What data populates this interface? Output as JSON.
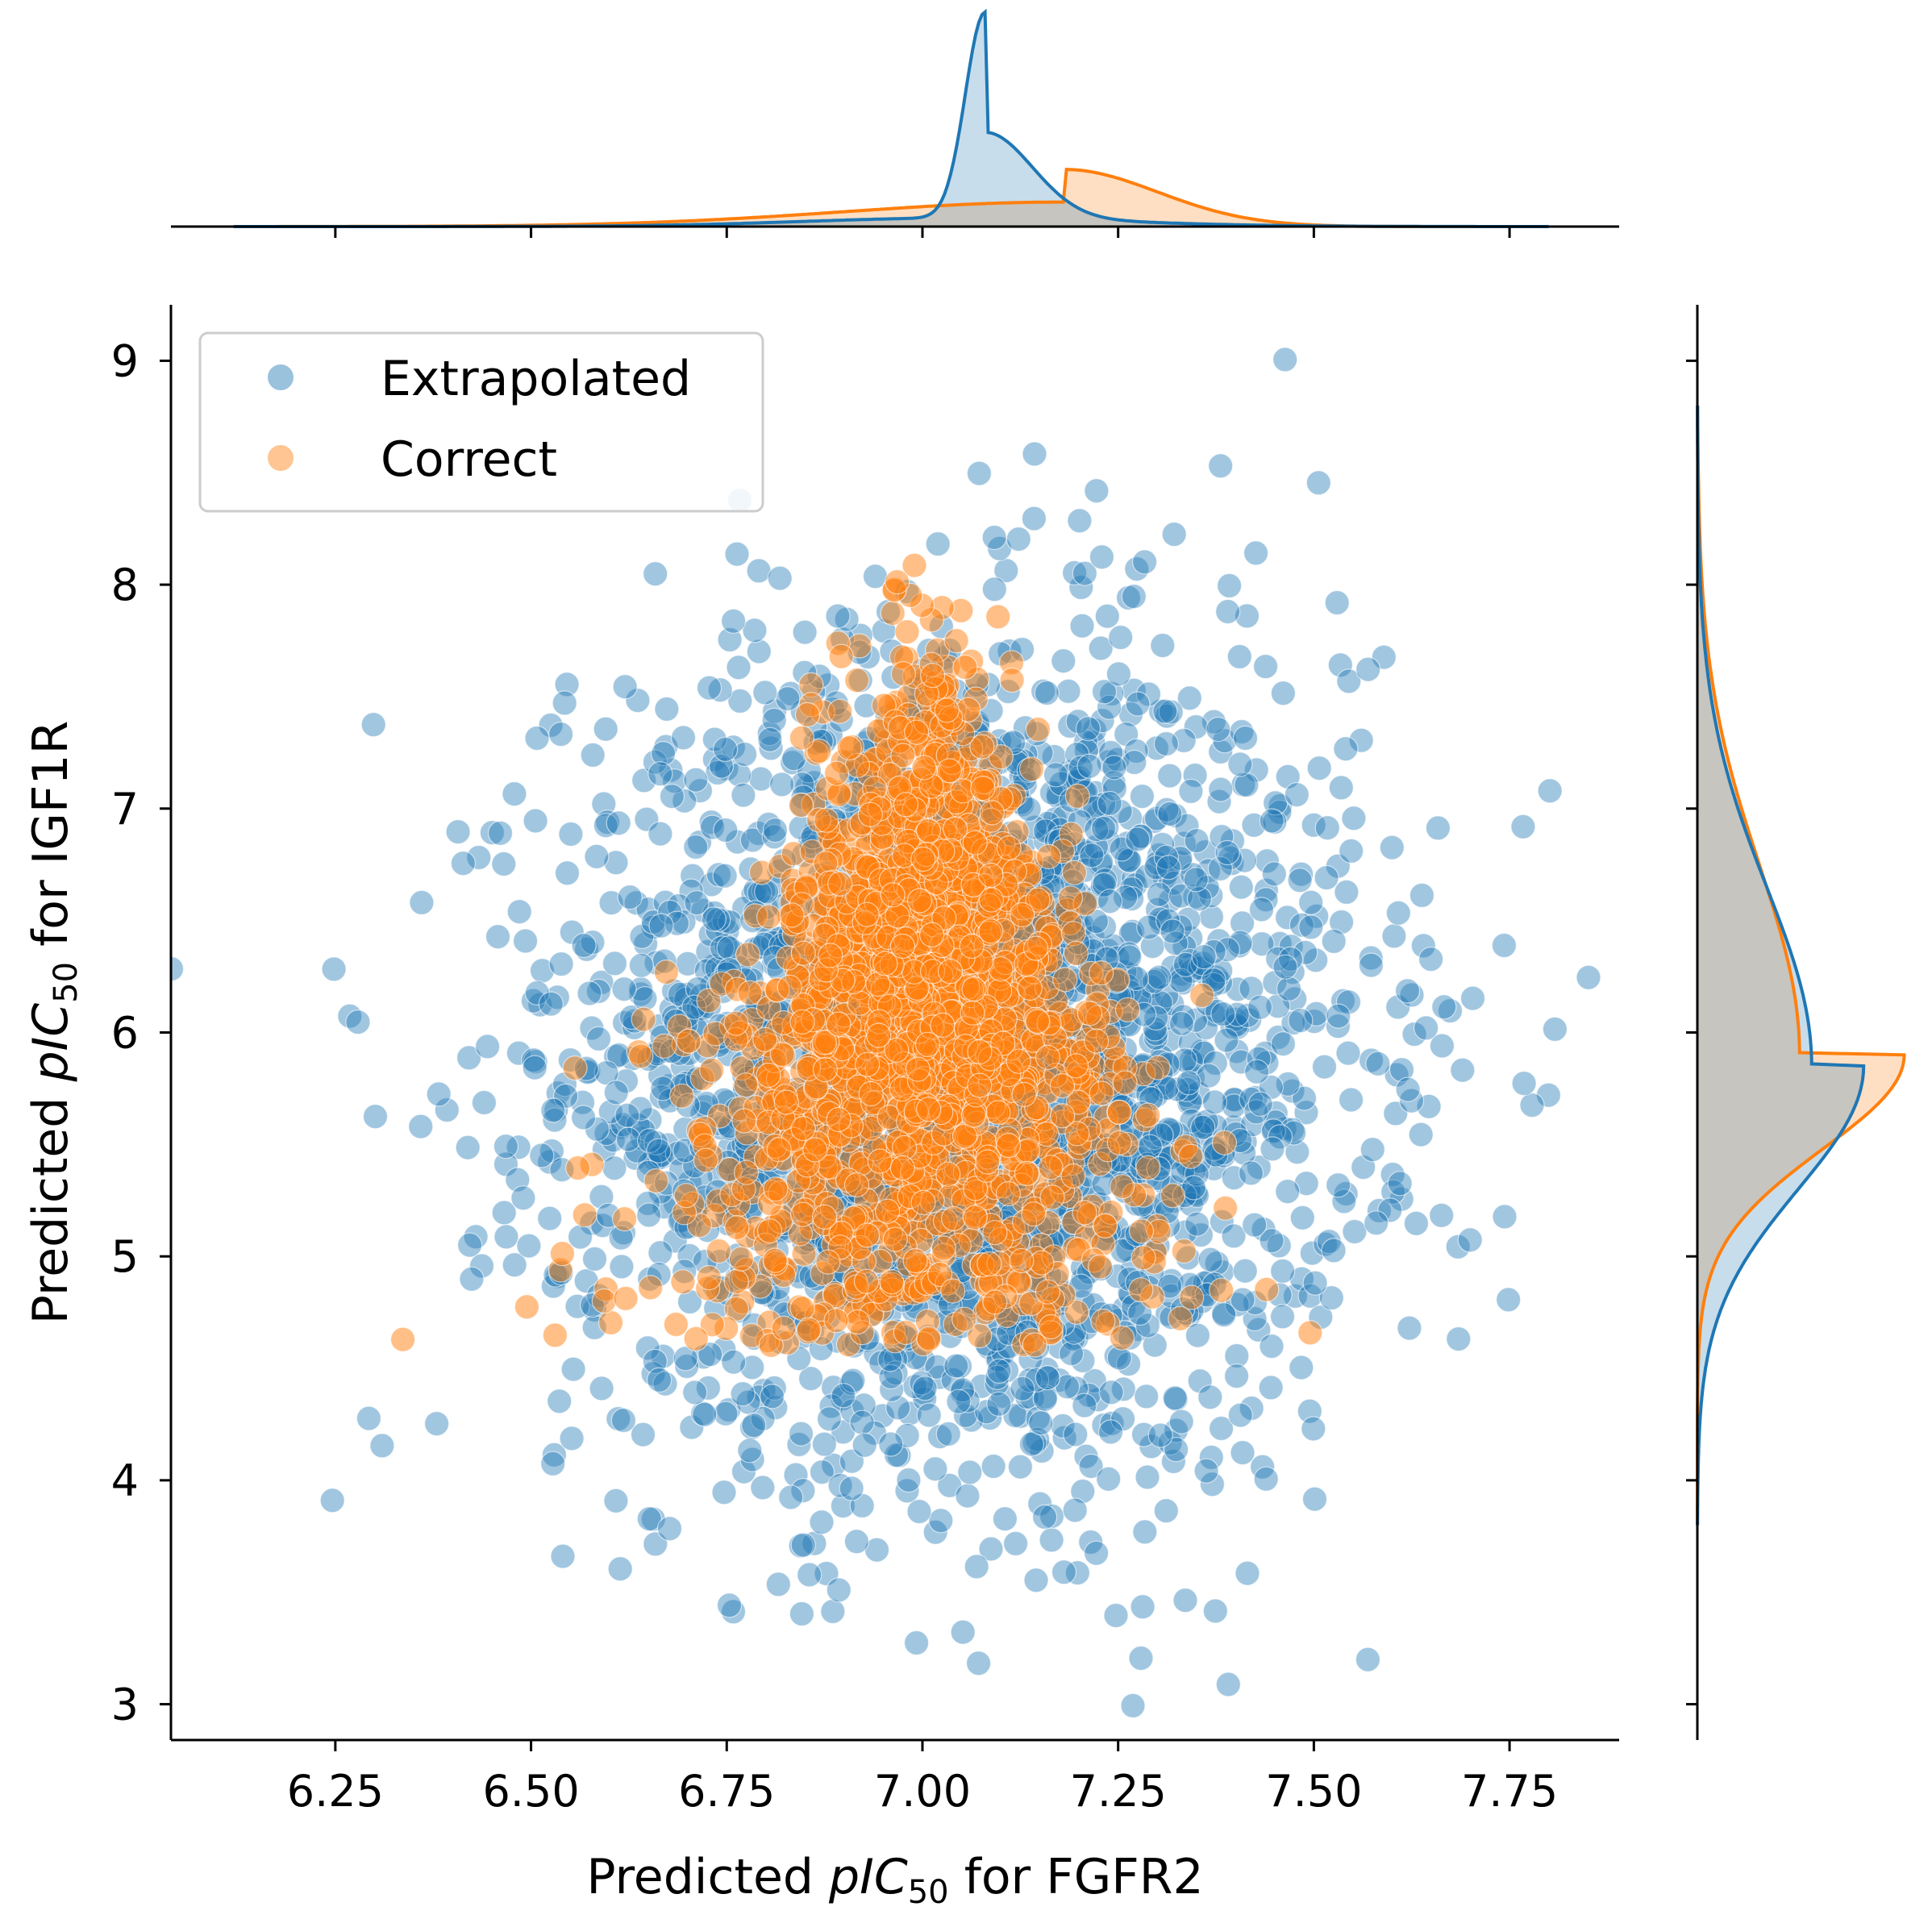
{
  "chart_data": {
    "type": "scatter",
    "subtype": "jointplot",
    "xlabel": {
      "prefix": "Predicted ",
      "italic": "pIC",
      "sub": "50",
      "suffix": " for FGFR2"
    },
    "ylabel": {
      "prefix": "Predicted ",
      "italic": "pIC",
      "sub": "50",
      "suffix": " for IGF1R"
    },
    "xlim": [
      6.04,
      7.89
    ],
    "ylim": [
      2.84,
      9.25
    ],
    "xticks": [
      6.25,
      6.5,
      6.75,
      7.0,
      7.25,
      7.5,
      7.75
    ],
    "xtick_labels": [
      "6.25",
      "6.50",
      "6.75",
      "7.00",
      "7.25",
      "7.50",
      "7.75"
    ],
    "yticks": [
      3,
      4,
      5,
      6,
      7,
      8,
      9
    ],
    "ytick_labels": [
      "3",
      "4",
      "5",
      "6",
      "7",
      "8",
      "9"
    ],
    "legend_position": "top-left",
    "series": [
      {
        "name": "Extrapolated",
        "color": "#1f77b4",
        "x_mean": 7.05,
        "x_sd": 0.25,
        "y_mean": 5.85,
        "y_sd": 0.92,
        "n_points_approx": 6000,
        "x_kde_peak": 7.08,
        "y_kde_peak": 5.85
      },
      {
        "name": "Correct",
        "color": "#ff7f0e",
        "x_mean": 7.0,
        "x_sd": 0.19,
        "y_mean": 6.05,
        "y_sd": 0.7,
        "n_points_approx": 4000,
        "x_kde_peak": 7.18,
        "y_kde_peak": 5.9
      }
    ]
  }
}
